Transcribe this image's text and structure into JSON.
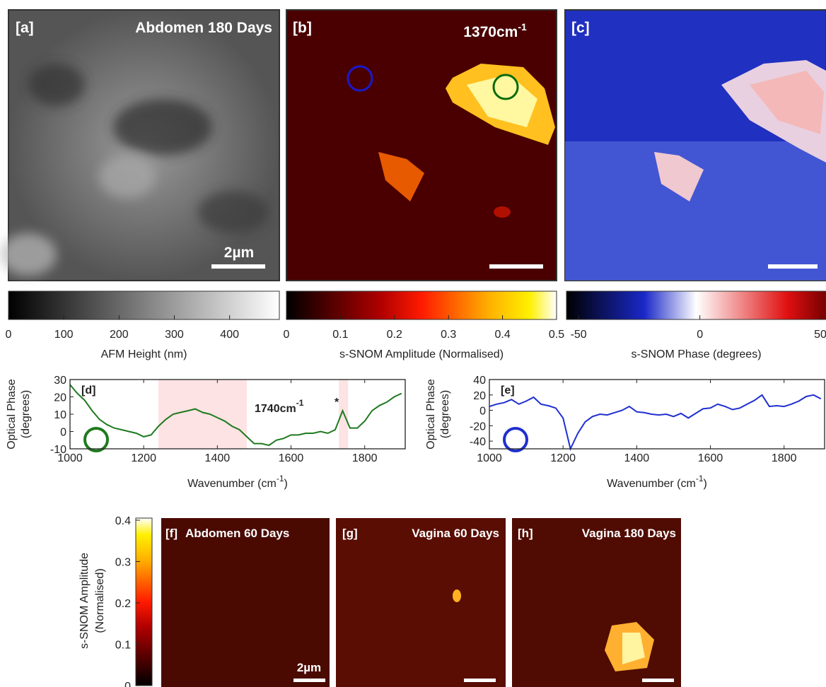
{
  "panels": [
    {
      "label": "[a]",
      "title": "Abdomen 180 Days",
      "scalebar": "2µm"
    },
    {
      "label": "[b]",
      "title": "1370cm",
      "title_sup": "-1"
    },
    {
      "label": "[c]"
    },
    {
      "label": "[f]",
      "title": "Abdomen 60 Days",
      "scalebar": "2µm"
    },
    {
      "label": "[g]",
      "title": "Vagina 60 Days"
    },
    {
      "label": "[h]",
      "title": "Vagina 180 Days"
    }
  ],
  "colorbars": [
    {
      "label": "AFM Height (nm)",
      "lim": [
        0,
        490
      ],
      "ticks": [
        0,
        100,
        200,
        300,
        400
      ]
    },
    {
      "label": "s-SNOM Amplitude (Normalised)",
      "lim": [
        0,
        0.5
      ],
      "ticks": [
        0,
        0.1,
        0.2,
        0.3,
        0.4,
        0.5
      ]
    },
    {
      "label": "s-SNOM Phase (degrees)",
      "lim": [
        -55,
        52
      ],
      "ticks": [
        -50,
        0,
        50
      ]
    },
    {
      "label": [
        "s-SNOM Amplitude",
        "(Normalised)"
      ],
      "lim": [
        0,
        0.4
      ],
      "ticks": [
        0,
        0.1,
        0.2,
        0.3,
        0.4
      ]
    }
  ],
  "chart_data": [
    {
      "type": "line",
      "panel_label": "[d]",
      "ylabel": [
        "Optical Phase",
        "(degrees)"
      ],
      "xlabel": [
        "Wavenumber (cm",
        "-1",
        ")"
      ],
      "x": [
        1000,
        1020,
        1040,
        1060,
        1080,
        1100,
        1120,
        1140,
        1160,
        1180,
        1200,
        1220,
        1240,
        1260,
        1280,
        1300,
        1320,
        1340,
        1360,
        1380,
        1400,
        1420,
        1440,
        1460,
        1480,
        1500,
        1520,
        1540,
        1560,
        1580,
        1600,
        1620,
        1640,
        1660,
        1680,
        1700,
        1720,
        1740,
        1760,
        1780,
        1800,
        1820,
        1840,
        1860,
        1880,
        1900
      ],
      "series": [
        {
          "color": "#1f7a1f",
          "values": [
            27,
            22,
            18,
            12,
            7,
            4,
            2,
            1,
            0,
            -1,
            -3,
            -2,
            3,
            7,
            10,
            11,
            12,
            13,
            11,
            10,
            8,
            6,
            3,
            1,
            -3,
            -7,
            -7,
            -8,
            -5,
            -4,
            -2,
            -2,
            -1,
            -1,
            0,
            -1,
            1,
            12,
            2,
            2,
            6,
            12,
            15,
            17,
            20,
            22
          ]
        }
      ],
      "xlim": [
        1000,
        1910
      ],
      "ylim": [
        -10,
        30
      ],
      "xticks": [
        1000,
        1200,
        1400,
        1600,
        1800
      ],
      "yticks": [
        -10,
        0,
        10,
        20,
        30
      ],
      "shaded": [
        [
          1240,
          1480
        ],
        [
          1730,
          1755
        ]
      ],
      "shade_color": "#fde3e3",
      "annotations": [
        {
          "text": "1740cm",
          "sup": "-1"
        },
        {
          "text": "*"
        }
      ]
    },
    {
      "type": "line",
      "panel_label": "[e]",
      "ylabel": [
        "Optical Phase",
        "(degrees)"
      ],
      "xlabel": [
        "Wavenumber (cm",
        "-1",
        ")"
      ],
      "x": [
        1000,
        1020,
        1040,
        1060,
        1080,
        1100,
        1120,
        1140,
        1160,
        1180,
        1200,
        1220,
        1240,
        1260,
        1280,
        1300,
        1320,
        1340,
        1360,
        1380,
        1400,
        1420,
        1440,
        1460,
        1480,
        1500,
        1520,
        1540,
        1560,
        1580,
        1600,
        1620,
        1640,
        1660,
        1680,
        1700,
        1720,
        1740,
        1760,
        1780,
        1800,
        1820,
        1840,
        1860,
        1880,
        1900
      ],
      "series": [
        {
          "color": "#1f2fcf",
          "values": [
            5,
            8,
            10,
            14,
            8,
            12,
            17,
            8,
            6,
            3,
            -10,
            -50,
            -30,
            -15,
            -8,
            -5,
            -6,
            -3,
            0,
            5,
            -2,
            -3,
            -5,
            -6,
            -5,
            -8,
            -4,
            -10,
            -4,
            2,
            3,
            8,
            5,
            1,
            3,
            8,
            13,
            20,
            5,
            6,
            5,
            8,
            12,
            18,
            20,
            15
          ]
        }
      ],
      "xlim": [
        1000,
        1910
      ],
      "ylim": [
        -50,
        40
      ],
      "xticks": [
        1000,
        1200,
        1400,
        1600,
        1800
      ],
      "yticks": [
        -40,
        -20,
        0,
        20,
        40
      ]
    }
  ]
}
